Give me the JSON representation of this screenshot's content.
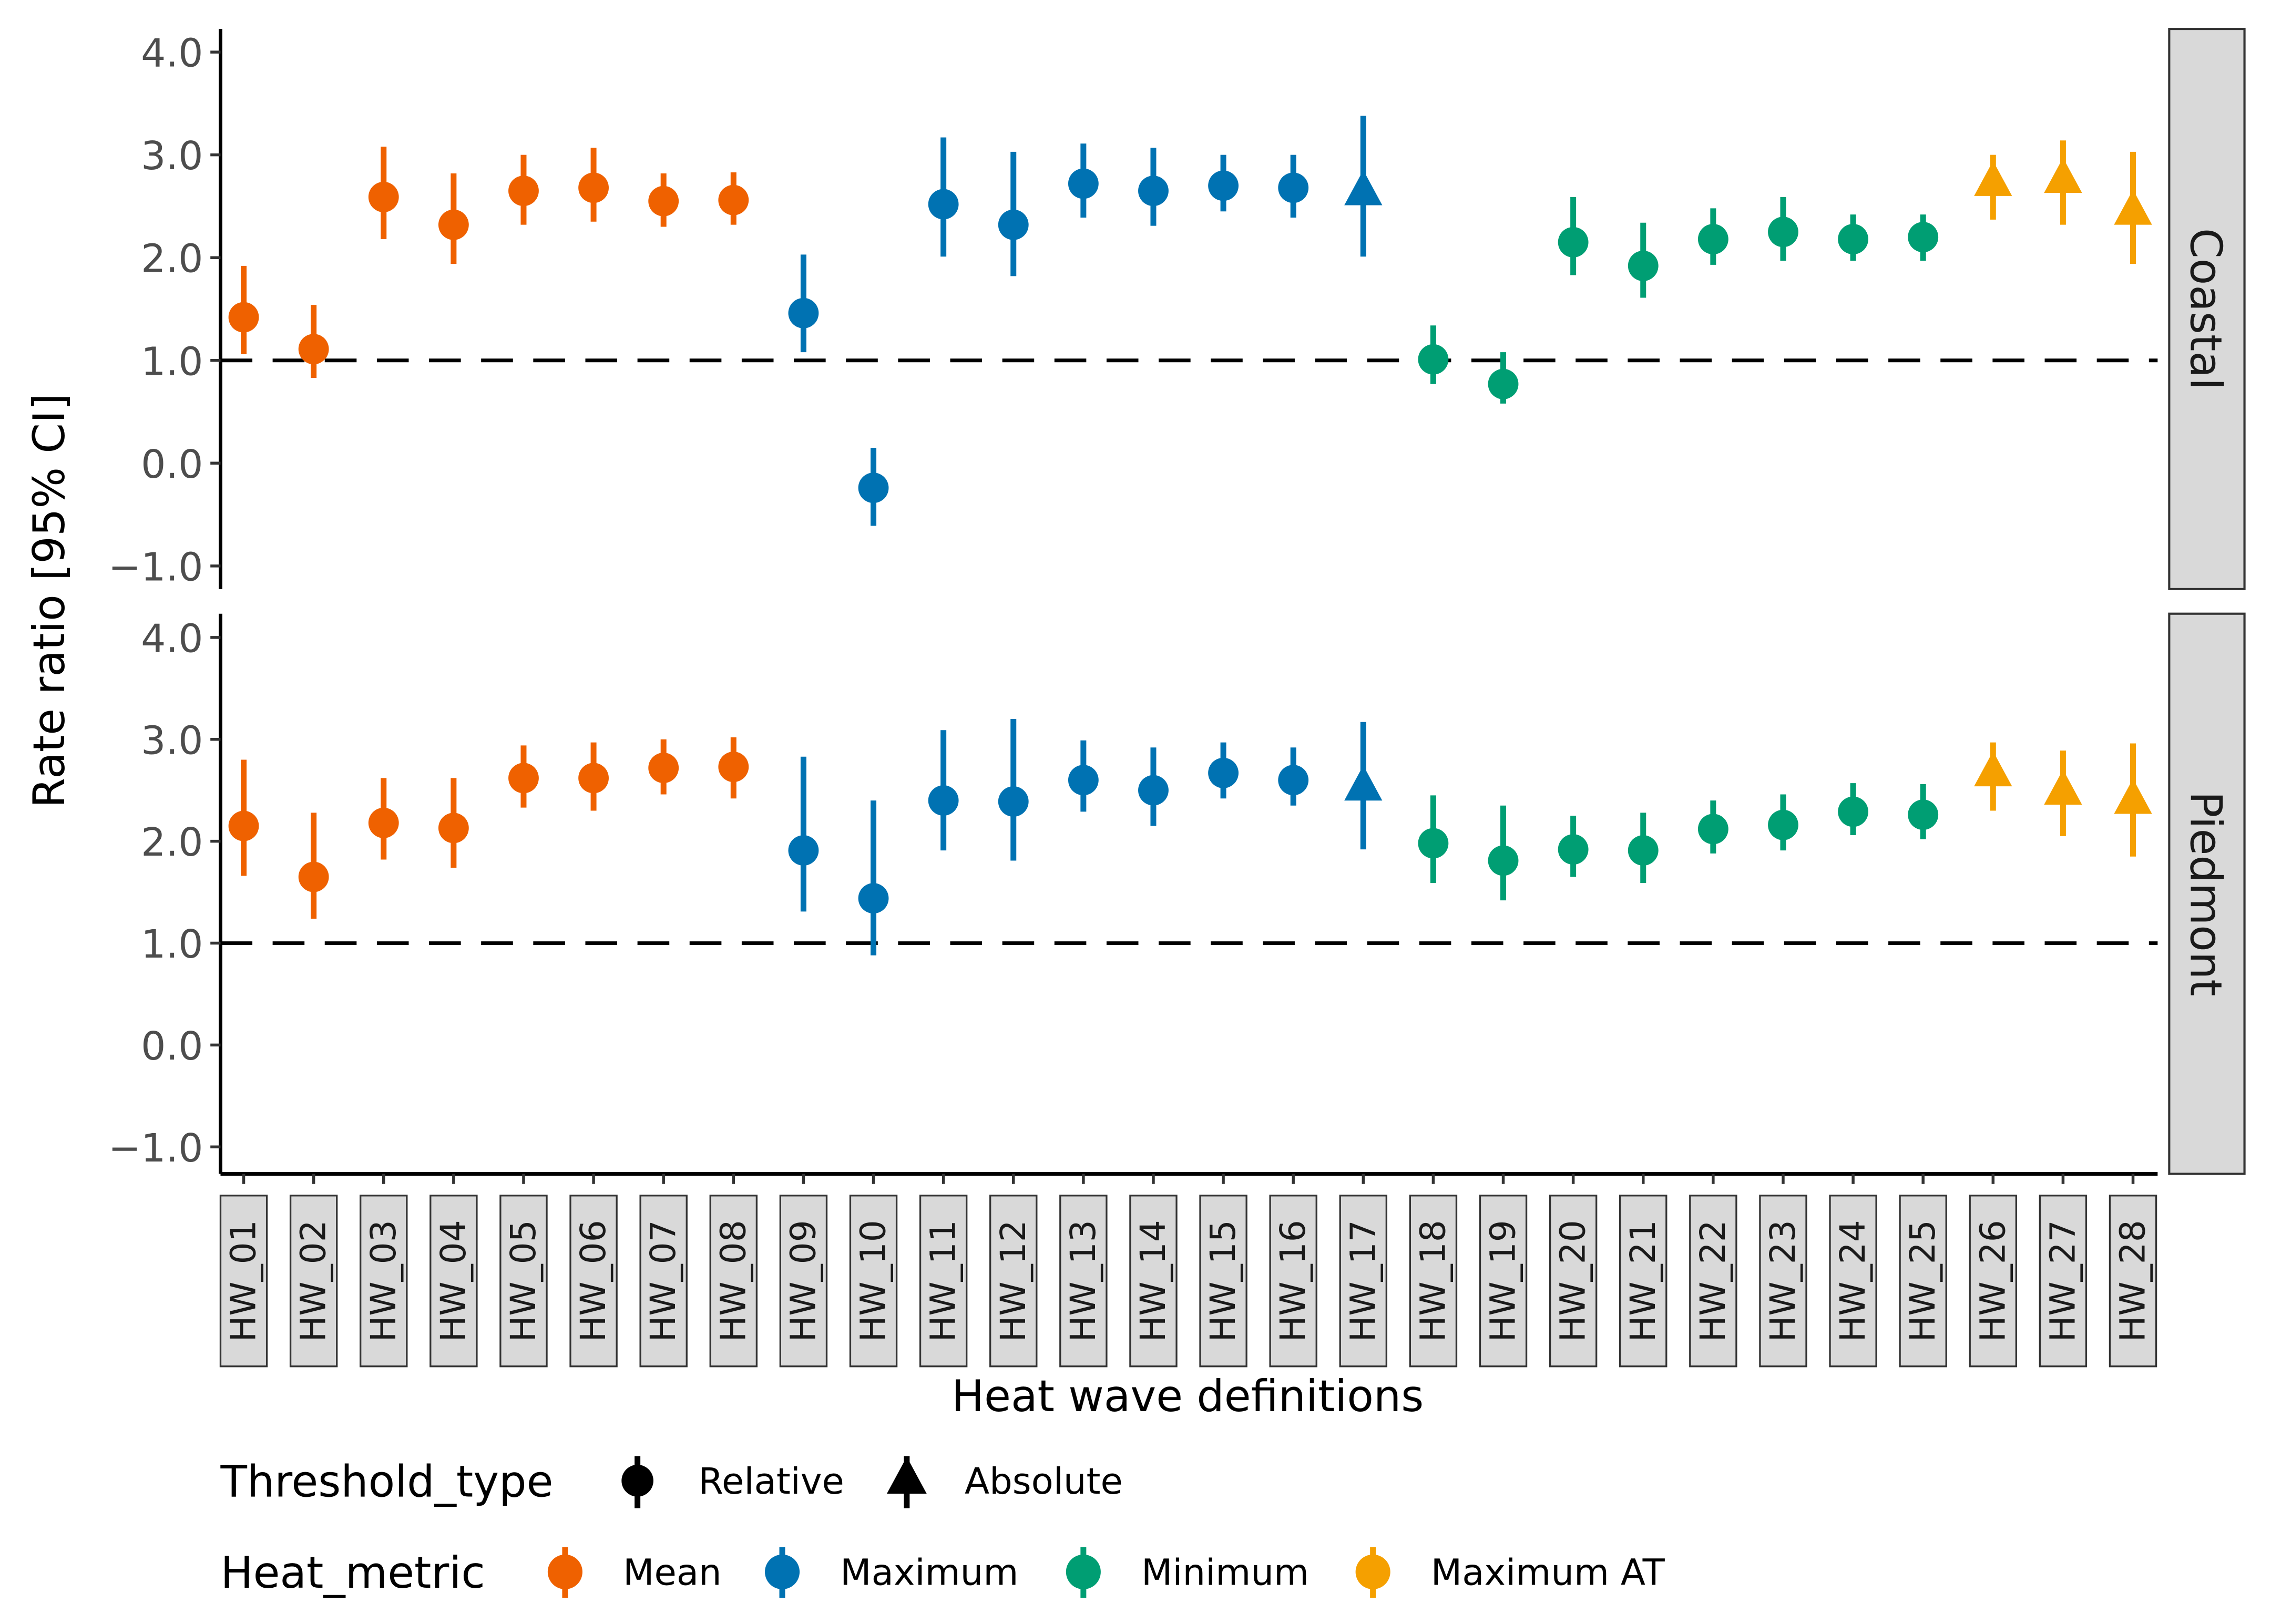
{
  "chart_data": {
    "type": "scatter",
    "subtype": "point-range, faceted",
    "xlabel": "Heat wave definitions",
    "ylabel": "Rate ratio [95% CI]",
    "ylim": [
      -1.2,
      4.2
    ],
    "yticks": [
      "4.0",
      "3.0",
      "2.0",
      "1.0",
      "0.0",
      "−1.0"
    ],
    "ytick_values": [
      4,
      3,
      2,
      1,
      0,
      -1
    ],
    "reference_line": 1.0,
    "categories": [
      "HW_01",
      "HW_02",
      "HW_03",
      "HW_04",
      "HW_05",
      "HW_06",
      "HW_07",
      "HW_08",
      "HW_09",
      "HW_10",
      "HW_11",
      "HW_12",
      "HW_13",
      "HW_14",
      "HW_15",
      "HW_16",
      "HW_17",
      "HW_18",
      "HW_19",
      "HW_20",
      "HW_21",
      "HW_22",
      "HW_23",
      "HW_24",
      "HW_25",
      "HW_26",
      "HW_27",
      "HW_28"
    ],
    "heat_metric": [
      "Mean",
      "Mean",
      "Mean",
      "Mean",
      "Mean",
      "Mean",
      "Mean",
      "Mean",
      "Maximum",
      "Maximum",
      "Maximum",
      "Maximum",
      "Maximum",
      "Maximum",
      "Maximum",
      "Maximum",
      "Maximum",
      "Minimum",
      "Minimum",
      "Minimum",
      "Minimum",
      "Minimum",
      "Minimum",
      "Minimum",
      "Minimum",
      "Maximum AT",
      "Maximum AT",
      "Maximum AT"
    ],
    "threshold_type": [
      "Relative",
      "Relative",
      "Relative",
      "Relative",
      "Relative",
      "Relative",
      "Relative",
      "Relative",
      "Relative",
      "Relative",
      "Relative",
      "Relative",
      "Relative",
      "Relative",
      "Relative",
      "Relative",
      "Absolute",
      "Relative",
      "Relative",
      "Relative",
      "Relative",
      "Relative",
      "Relative",
      "Relative",
      "Relative",
      "Absolute",
      "Absolute",
      "Absolute"
    ],
    "panels": [
      {
        "name": "Coastal",
        "estimate": [
          1.42,
          1.11,
          2.59,
          2.32,
          2.65,
          2.68,
          2.55,
          2.56,
          1.46,
          -0.24,
          2.52,
          2.32,
          2.72,
          2.65,
          2.7,
          2.68,
          2.63,
          1.01,
          0.77,
          2.15,
          1.92,
          2.18,
          2.25,
          2.18,
          2.2,
          2.72,
          2.75,
          2.44
        ],
        "lower": [
          1.06,
          0.83,
          2.18,
          1.94,
          2.32,
          2.35,
          2.3,
          2.32,
          1.08,
          -0.61,
          2.01,
          1.82,
          2.39,
          2.31,
          2.45,
          2.39,
          2.01,
          0.77,
          0.58,
          1.83,
          1.61,
          1.93,
          1.97,
          1.97,
          1.97,
          2.37,
          2.32,
          1.94
        ],
        "upper": [
          1.92,
          1.54,
          3.08,
          2.82,
          3.0,
          3.07,
          2.82,
          2.83,
          2.03,
          0.15,
          3.17,
          3.03,
          3.11,
          3.07,
          3.0,
          3.0,
          3.38,
          1.34,
          1.08,
          2.59,
          2.34,
          2.48,
          2.59,
          2.42,
          2.42,
          3.0,
          3.14,
          3.03
        ]
      },
      {
        "name": "Piedmont",
        "estimate": [
          2.15,
          1.65,
          2.18,
          2.13,
          2.62,
          2.62,
          2.72,
          2.73,
          1.91,
          1.44,
          2.4,
          2.39,
          2.6,
          2.5,
          2.67,
          2.6,
          2.52,
          1.98,
          1.81,
          1.92,
          1.91,
          2.12,
          2.16,
          2.29,
          2.26,
          2.66,
          2.48,
          2.39
        ],
        "lower": [
          1.66,
          1.24,
          1.82,
          1.74,
          2.33,
          2.3,
          2.46,
          2.42,
          1.31,
          0.88,
          1.91,
          1.81,
          2.29,
          2.15,
          2.42,
          2.35,
          1.92,
          1.59,
          1.42,
          1.65,
          1.59,
          1.88,
          1.91,
          2.06,
          2.02,
          2.3,
          2.05,
          1.85
        ],
        "upper": [
          2.8,
          2.28,
          2.62,
          2.62,
          2.94,
          2.97,
          3.0,
          3.02,
          2.83,
          2.4,
          3.09,
          3.2,
          2.99,
          2.92,
          2.97,
          2.92,
          3.17,
          2.45,
          2.35,
          2.25,
          2.28,
          2.4,
          2.46,
          2.57,
          2.56,
          2.97,
          2.89,
          2.96
        ]
      }
    ],
    "legend": {
      "placement": "bottom",
      "threshold_title": "Threshold_type",
      "threshold_entries": [
        "Relative",
        "Absolute"
      ],
      "metric_title": "Heat_metric",
      "metric_entries": [
        "Mean",
        "Maximum",
        "Minimum",
        "Maximum AT"
      ]
    },
    "colors": {
      "Mean": "#EF6100",
      "Maximum": "#0072B2",
      "Minimum": "#009E73",
      "Maximum AT": "#F5A000"
    },
    "grid": false
  }
}
